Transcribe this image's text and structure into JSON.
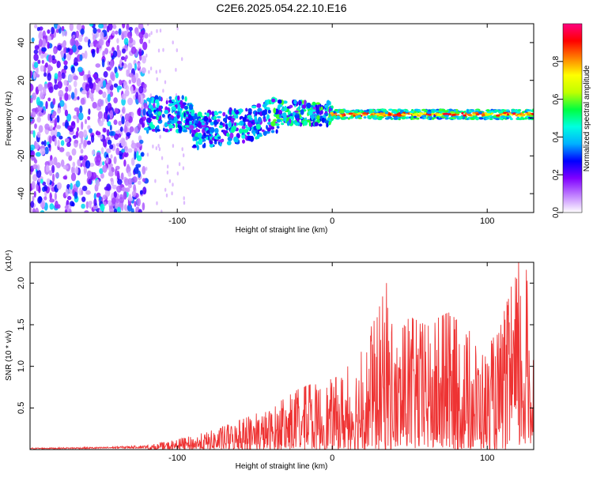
{
  "title": "C2E6.2025.054.22.10.E16",
  "chart_data": [
    {
      "type": "heatmap",
      "name": "spectrogram",
      "xlabel": "Height of straight line (km)",
      "ylabel": "Frequency (Hz)",
      "xlim": [
        -195,
        130
      ],
      "ylim": [
        -50,
        50
      ],
      "xticks": [
        -100,
        0,
        100
      ],
      "yticks": [
        -40,
        -20,
        0,
        20,
        40
      ],
      "colorbar": {
        "label": "Normalized spectral amplitude",
        "range": [
          0,
          1
        ],
        "ticks": [
          "0.0",
          "0.2",
          "0.4",
          "0.6",
          "0.8"
        ],
        "colormap": [
          "#ffffff",
          "#c080ff",
          "#8000ff",
          "#0000ff",
          "#00b0ff",
          "#00ffe0",
          "#00ff40",
          "#c0ff00",
          "#ffff00",
          "#ff8000",
          "#ff0000",
          "#ff0080"
        ]
      },
      "regions": [
        {
          "x_range": [
            -195,
            -120
          ],
          "description": "broadband noise",
          "amplitude": 0.15
        },
        {
          "x_range": [
            -120,
            0
          ],
          "description": "dispersed signal near 0 Hz",
          "amplitude": 0.3
        },
        {
          "x_range": [
            0,
            130
          ],
          "description": "narrow line near 2 Hz",
          "amplitude": 0.75
        }
      ]
    },
    {
      "type": "line",
      "name": "snr",
      "xlabel": "Height of straight line (km)",
      "ylabel": "SNR (10 * v/v)",
      "y_multiplier": "(x10⁴)",
      "xlim": [
        -195,
        130
      ],
      "ylim": [
        0,
        2.25
      ],
      "xticks": [
        -100,
        0,
        100
      ],
      "yticks": [
        "0.5",
        "1.0",
        "1.5",
        "2.0"
      ],
      "color": "#ee3333",
      "envelope": {
        "x": [
          -195,
          -150,
          -120,
          -100,
          -80,
          -60,
          -40,
          -20,
          0,
          10,
          20,
          35,
          40,
          50,
          60,
          75,
          90,
          100,
          110,
          120,
          125,
          130
        ],
        "y": [
          0.02,
          0.03,
          0.05,
          0.12,
          0.22,
          0.35,
          0.5,
          0.75,
          0.85,
          1.0,
          1.2,
          2.0,
          1.3,
          1.6,
          1.5,
          1.65,
          1.4,
          1.2,
          1.6,
          2.25,
          2.2,
          1.4
        ]
      }
    }
  ]
}
